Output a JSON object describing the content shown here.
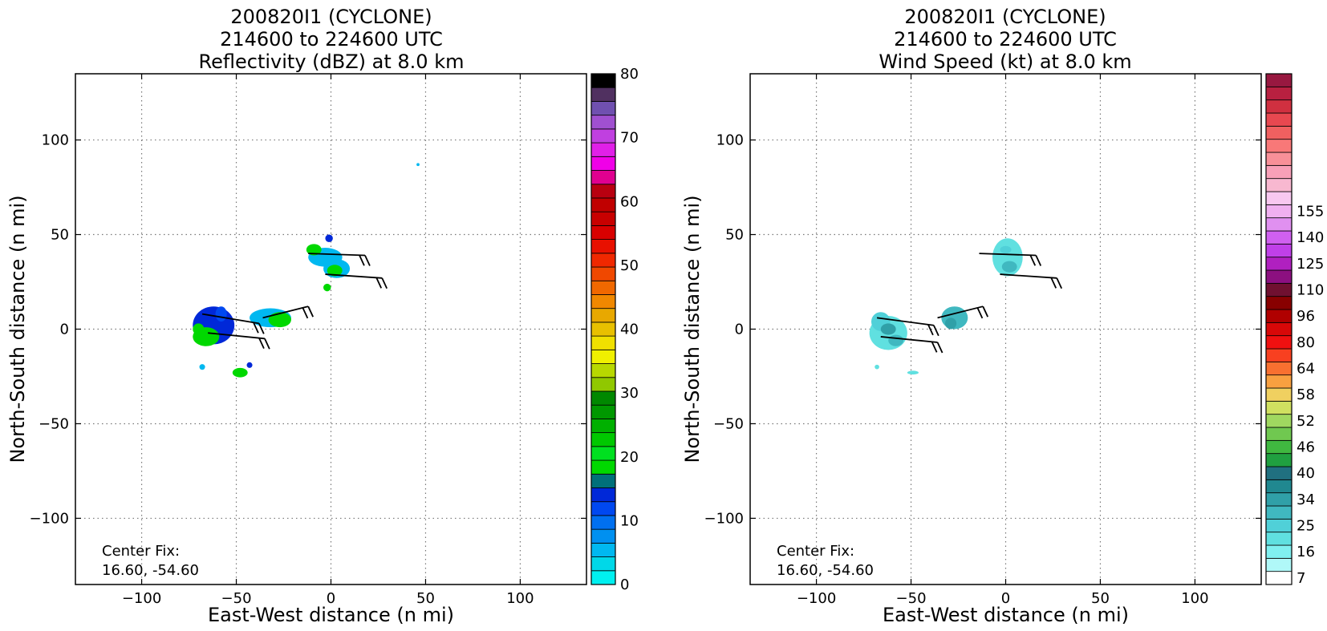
{
  "chart_data": [
    {
      "type": "heatmap",
      "title_lines": [
        "200820I1 (CYCLONE)",
        "214600 to 224600 UTC",
        "Reflectivity (dBZ) at 8.0 km"
      ],
      "xlabel": "East-West distance (n mi)",
      "ylabel": "North-South distance (n mi)",
      "xlim": [
        -135,
        135
      ],
      "ylim": [
        -135,
        135
      ],
      "xticks": [
        -100,
        -50,
        0,
        50,
        100
      ],
      "yticks": [
        -100,
        -50,
        0,
        50,
        100
      ],
      "xtick_labels": [
        "−100",
        "−50",
        "0",
        "50",
        "100"
      ],
      "ytick_labels": [
        "−100",
        "−50",
        "0",
        "50",
        "100"
      ],
      "grid": true,
      "annotation_lines": [
        "Center Fix:",
        "16.60, -54.60"
      ],
      "colorbar": {
        "colors": [
          "#00f0f0",
          "#00d8e8",
          "#00b8f0",
          "#0090f0",
          "#0070f0",
          "#0048f0",
          "#0028d8",
          "#00707a",
          "#00d800",
          "#00e020",
          "#00c800",
          "#00b000",
          "#009800",
          "#008800",
          "#90c800",
          "#b8d800",
          "#f0f000",
          "#f0e000",
          "#e8c000",
          "#e8a800",
          "#f08800",
          "#f06800",
          "#f04800",
          "#f02800",
          "#e81000",
          "#d80000",
          "#c80000",
          "#c00000",
          "#b80010",
          "#e00090",
          "#f000e8",
          "#e020e8",
          "#c040e0",
          "#a050d0",
          "#7050b0",
          "#503060",
          "#000000"
        ],
        "vmin": 0,
        "vmax": 80,
        "tick_values": [
          0,
          10,
          20,
          30,
          40,
          50,
          60,
          70,
          80
        ],
        "tick_labels": [
          "0",
          "10",
          "20",
          "30",
          "40",
          "50",
          "60",
          "70",
          "80"
        ]
      },
      "blobs": [
        {
          "x": -62,
          "y": 2,
          "rx": 11,
          "ry": 10,
          "color": "#0028d8"
        },
        {
          "x": -66,
          "y": -4,
          "rx": 7,
          "ry": 5,
          "color": "#00d800"
        },
        {
          "x": -58,
          "y": 8,
          "rx": 3,
          "ry": 4,
          "color": "#0048f0"
        },
        {
          "x": -70,
          "y": 0,
          "rx": 3,
          "ry": 3,
          "color": "#00d800"
        },
        {
          "x": -68,
          "y": -20,
          "rx": 1.5,
          "ry": 1.5,
          "color": "#00b8f0"
        },
        {
          "x": -48,
          "y": -23,
          "rx": 4,
          "ry": 2.5,
          "color": "#00d800"
        },
        {
          "x": -43,
          "y": -19,
          "rx": 1.5,
          "ry": 1.5,
          "color": "#0028d8"
        },
        {
          "x": -32,
          "y": 6,
          "rx": 11,
          "ry": 5,
          "color": "#00b8f0"
        },
        {
          "x": -27,
          "y": 5,
          "rx": 6,
          "ry": 4,
          "color": "#00d800"
        },
        {
          "x": -3,
          "y": 38,
          "rx": 9,
          "ry": 5,
          "color": "#00b8f0"
        },
        {
          "x": -9,
          "y": 42,
          "rx": 4,
          "ry": 3,
          "color": "#00d800"
        },
        {
          "x": 3,
          "y": 32,
          "rx": 7,
          "ry": 5,
          "color": "#00b8f0"
        },
        {
          "x": 2,
          "y": 31,
          "rx": 4,
          "ry": 3,
          "color": "#00d800"
        },
        {
          "x": -1,
          "y": 48,
          "rx": 2,
          "ry": 2,
          "color": "#0028d8"
        },
        {
          "x": -2,
          "y": 22,
          "rx": 2,
          "ry": 2,
          "color": "#00d800"
        },
        {
          "x": 46,
          "y": 87,
          "rx": 0.8,
          "ry": 0.8,
          "color": "#00b8f0"
        }
      ],
      "barbs": [
        {
          "x": -68,
          "y": 8,
          "dx": 30,
          "dy": -5
        },
        {
          "x": -65,
          "y": -2,
          "dx": 30,
          "dy": -3
        },
        {
          "x": -36,
          "y": 6,
          "dx": 24,
          "dy": 6
        },
        {
          "x": -12,
          "y": 40,
          "dx": 30,
          "dy": -1
        },
        {
          "x": -3,
          "y": 29,
          "dx": 30,
          "dy": -2
        }
      ]
    },
    {
      "type": "heatmap",
      "title_lines": [
        "200820I1 (CYCLONE)",
        "214600 to 224600 UTC",
        "Wind Speed (kt) at 8.0 km"
      ],
      "xlabel": "East-West distance (n mi)",
      "ylabel": "North-South distance (n mi)",
      "xlim": [
        -135,
        135
      ],
      "ylim": [
        -135,
        135
      ],
      "xticks": [
        -100,
        -50,
        0,
        50,
        100
      ],
      "yticks": [
        -100,
        -50,
        0,
        50,
        100
      ],
      "xtick_labels": [
        "−100",
        "−50",
        "0",
        "50",
        "100"
      ],
      "ytick_labels": [
        "−100",
        "−50",
        "0",
        "50",
        "100"
      ],
      "grid": true,
      "annotation_lines": [
        "Center Fix:",
        "16.60, -54.60"
      ],
      "colorbar": {
        "colors": [
          "#ffffff",
          "#b0f8f8",
          "#80f0f0",
          "#60e0e0",
          "#50d0d8",
          "#40b8c0",
          "#30a0a8",
          "#208890",
          "#207080",
          "#20a040",
          "#40b840",
          "#70c850",
          "#a0d860",
          "#d0e060",
          "#f0d060",
          "#f8a040",
          "#f87030",
          "#f84020",
          "#f01010",
          "#d80808",
          "#b00000",
          "#880000",
          "#701030",
          "#8c1080",
          "#b020c0",
          "#c040e8",
          "#d060f0",
          "#e090f0",
          "#f0b0f0",
          "#f8c8f0",
          "#f8b8d0",
          "#f8a0b8",
          "#f89098",
          "#f87878",
          "#f06060",
          "#e84850",
          "#d03040",
          "#b82040",
          "#981840"
        ],
        "tick_labels": [
          "7",
          "16",
          "25",
          "34",
          "40",
          "46",
          "52",
          "58",
          "64",
          "80",
          "96",
          "110",
          "125",
          "140",
          "155"
        ],
        "tick_indices": [
          0,
          2,
          4,
          6,
          8,
          10,
          12,
          14,
          16,
          18,
          20,
          22,
          24,
          26,
          28
        ]
      },
      "blobs": [
        {
          "x": -62,
          "y": -2,
          "rx": 10,
          "ry": 9,
          "color": "#60e0e0"
        },
        {
          "x": -66,
          "y": 4,
          "rx": 5,
          "ry": 5,
          "color": "#50d0d8"
        },
        {
          "x": -58,
          "y": -6,
          "rx": 4,
          "ry": 3,
          "color": "#40b8c0"
        },
        {
          "x": -62,
          "y": 0,
          "rx": 4,
          "ry": 3,
          "color": "#30a0a8"
        },
        {
          "x": -68,
          "y": -20,
          "rx": 1.2,
          "ry": 1.2,
          "color": "#60e0e0"
        },
        {
          "x": -49,
          "y": -23,
          "rx": 3,
          "ry": 1,
          "color": "#60e0e0"
        },
        {
          "x": -27,
          "y": 6,
          "rx": 7,
          "ry": 6,
          "color": "#40b8c0"
        },
        {
          "x": -29,
          "y": 3,
          "rx": 3,
          "ry": 3,
          "color": "#30a0a8"
        },
        {
          "x": 1,
          "y": 38,
          "rx": 8,
          "ry": 10,
          "color": "#60e0e0"
        },
        {
          "x": 2,
          "y": 33,
          "rx": 4,
          "ry": 3,
          "color": "#40b8c0"
        },
        {
          "x": 0,
          "y": 42,
          "rx": 3,
          "ry": 2,
          "color": "#50d0d8"
        }
      ],
      "barbs": [
        {
          "x": -68,
          "y": 6,
          "dx": 30,
          "dy": -4
        },
        {
          "x": -66,
          "y": -4,
          "dx": 30,
          "dy": -3
        },
        {
          "x": -36,
          "y": 6,
          "dx": 24,
          "dy": 6
        },
        {
          "x": -14,
          "y": 40,
          "dx": 30,
          "dy": -1
        },
        {
          "x": -3,
          "y": 29,
          "dx": 30,
          "dy": -2
        }
      ]
    }
  ]
}
